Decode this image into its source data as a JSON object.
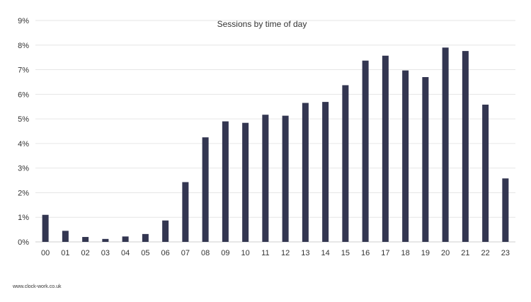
{
  "chart_data": {
    "type": "bar",
    "title": "Sessions by time of day",
    "categories": [
      "00",
      "01",
      "02",
      "03",
      "04",
      "05",
      "06",
      "07",
      "08",
      "09",
      "10",
      "11",
      "12",
      "13",
      "14",
      "15",
      "16",
      "17",
      "18",
      "19",
      "20",
      "21",
      "22",
      "23"
    ],
    "values": [
      1.1,
      0.45,
      0.2,
      0.12,
      0.22,
      0.32,
      0.87,
      2.43,
      4.25,
      4.9,
      4.84,
      5.17,
      5.13,
      5.65,
      5.69,
      6.37,
      7.37,
      7.57,
      6.97,
      6.7,
      7.9,
      7.76,
      5.58,
      2.58
    ],
    "ylim": [
      0,
      9
    ],
    "yticks": [
      0,
      1,
      2,
      3,
      4,
      5,
      6,
      7,
      8,
      9
    ],
    "ytick_labels": [
      "0%",
      "1%",
      "2%",
      "3%",
      "4%",
      "5%",
      "6%",
      "7%",
      "8%",
      "9%"
    ],
    "ylabel": "",
    "xlabel": "",
    "grid": true,
    "legend": "none",
    "bar_color": "#333651",
    "grid_color": "#e6e6e6"
  },
  "footer": {
    "source": "www.clock-work.co.uk"
  }
}
